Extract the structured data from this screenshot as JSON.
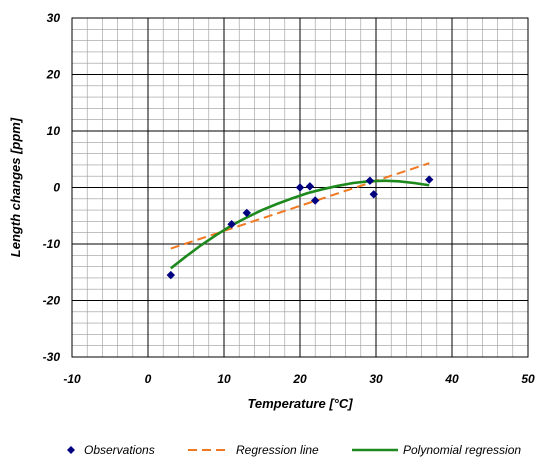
{
  "chart_data": {
    "type": "scatter",
    "xlabel": "Temperature [°C]",
    "ylabel": "Length changes [ppm]",
    "xlim": [
      -10,
      50
    ],
    "ylim": [
      -30,
      30
    ],
    "x_major_step": 10,
    "y_major_step": 10,
    "x_minor_step": 2,
    "y_minor_step": 2,
    "x_ticks": [
      "-10",
      "0",
      "10",
      "20",
      "30",
      "40",
      "50"
    ],
    "y_ticks": [
      "30",
      "20",
      "10",
      "0",
      "-10",
      "-20",
      "-30"
    ],
    "grid": true,
    "legend_position": "bottom",
    "series": [
      {
        "name": "Observations",
        "kind": "points",
        "marker": "diamond",
        "color": "#000080",
        "points": [
          {
            "x": 3,
            "y": -15.5
          },
          {
            "x": 11,
            "y": -6.5
          },
          {
            "x": 13,
            "y": -4.5
          },
          {
            "x": 20,
            "y": 0
          },
          {
            "x": 21.3,
            "y": 0.2
          },
          {
            "x": 22,
            "y": -2.3
          },
          {
            "x": 29.2,
            "y": 1.2
          },
          {
            "x": 29.7,
            "y": -1.2
          },
          {
            "x": 37,
            "y": 1.4
          }
        ]
      },
      {
        "name": "Regression line",
        "kind": "line",
        "style": "dashed",
        "color": "#f07820",
        "points": [
          {
            "x": 3,
            "y": -10.8
          },
          {
            "x": 37,
            "y": 4.3
          }
        ]
      },
      {
        "name": "Polynomial regression",
        "kind": "line",
        "style": "solid",
        "color": "#1e8a1e",
        "points": [
          {
            "x": 3,
            "y": -14.3
          },
          {
            "x": 5,
            "y": -12.2
          },
          {
            "x": 7,
            "y": -10.2
          },
          {
            "x": 9,
            "y": -8.4
          },
          {
            "x": 11,
            "y": -6.7
          },
          {
            "x": 13,
            "y": -5.3
          },
          {
            "x": 15,
            "y": -4.0
          },
          {
            "x": 17,
            "y": -2.9
          },
          {
            "x": 19,
            "y": -1.9
          },
          {
            "x": 21,
            "y": -1.0
          },
          {
            "x": 23,
            "y": -0.3
          },
          {
            "x": 25,
            "y": 0.3
          },
          {
            "x": 27,
            "y": 0.8
          },
          {
            "x": 29,
            "y": 1.1
          },
          {
            "x": 31,
            "y": 1.2
          },
          {
            "x": 33,
            "y": 1.1
          },
          {
            "x": 35,
            "y": 0.8
          },
          {
            "x": 37,
            "y": 0.4
          }
        ]
      }
    ]
  }
}
